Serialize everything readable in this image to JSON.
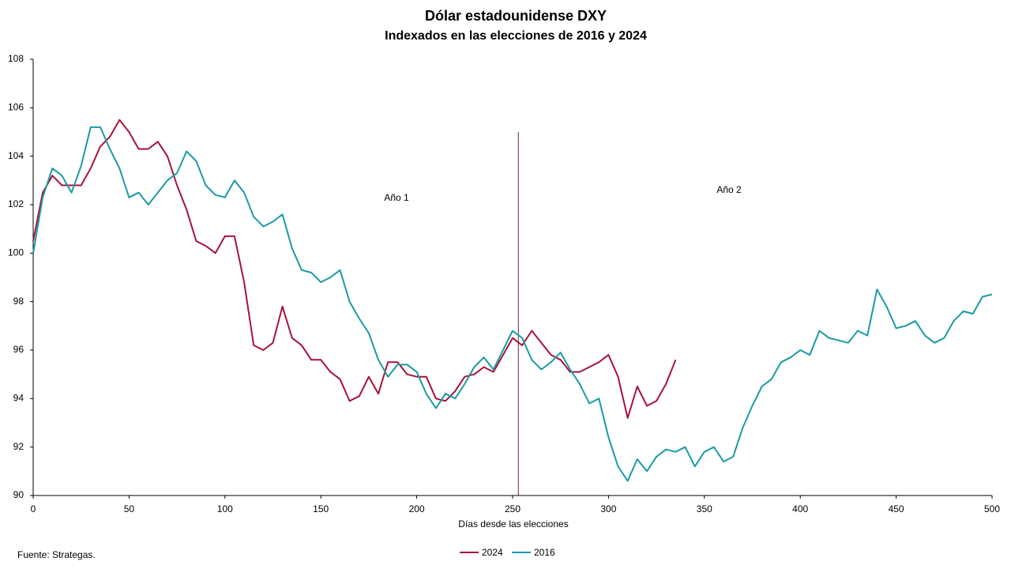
{
  "chart_data": {
    "type": "line",
    "title": "Dólar estadounidense DXY",
    "subtitle": "Indexados en las elecciones de 2016 y 2024",
    "x_label": "Días desde las elecciones",
    "source": "Fuente: Strategas.",
    "annotations": [
      "Año 1",
      "Año 2"
    ],
    "vline": 253,
    "vline_color": "#7a1f3d",
    "x": [
      0,
      5,
      10,
      15,
      20,
      25,
      30,
      35,
      40,
      45,
      50,
      55,
      60,
      65,
      70,
      75,
      80,
      85,
      90,
      95,
      100,
      105,
      110,
      115,
      120,
      125,
      130,
      135,
      140,
      145,
      150,
      155,
      160,
      165,
      170,
      175,
      180,
      185,
      190,
      195,
      200,
      205,
      210,
      215,
      220,
      225,
      230,
      235,
      240,
      245,
      250,
      255,
      260,
      265,
      270,
      275,
      280,
      285,
      290,
      295,
      300,
      305,
      310,
      315,
      320,
      325,
      330,
      335,
      340,
      345,
      350,
      355,
      360,
      365,
      370,
      375,
      380,
      385,
      390,
      395,
      400,
      405,
      410,
      415,
      420,
      425,
      430,
      435,
      440,
      445,
      450,
      455,
      460,
      465,
      470,
      475,
      480,
      485,
      490,
      495,
      500
    ],
    "series": [
      {
        "name": "2024",
        "color": "#a8123a",
        "values": [
          100.5,
          102.5,
          103.2,
          102.8,
          102.8,
          102.8,
          103.5,
          104.4,
          104.8,
          105.5,
          105.0,
          104.3,
          104.3,
          104.6,
          104.0,
          102.8,
          101.8,
          100.5,
          100.3,
          100.0,
          100.7,
          100.7,
          98.8,
          96.2,
          96.0,
          96.3,
          97.8,
          96.5,
          96.2,
          95.6,
          95.6,
          95.1,
          94.8,
          93.9,
          94.1,
          94.9,
          94.2,
          95.5,
          95.5,
          95.0,
          94.9,
          94.9,
          94.0,
          93.9,
          94.3,
          94.9,
          95.0,
          95.3,
          95.1,
          95.8,
          96.5,
          96.2,
          96.8,
          96.3,
          95.8,
          95.6,
          95.1,
          95.1,
          95.3,
          95.5,
          95.8,
          94.9,
          93.2,
          94.5,
          93.7,
          93.9,
          94.6,
          95.6,
          null,
          null,
          null,
          null,
          null,
          null,
          null,
          null,
          null,
          null,
          null,
          null,
          null,
          null,
          null,
          null,
          null,
          null,
          null,
          null,
          null,
          null,
          null,
          null,
          null,
          null,
          null,
          null,
          null,
          null,
          null,
          null,
          null
        ]
      },
      {
        "name": "2016",
        "color": "#1a9ba6",
        "values": [
          100.0,
          102.3,
          103.5,
          103.2,
          102.5,
          103.6,
          105.2,
          105.2,
          104.3,
          103.5,
          102.3,
          102.5,
          102.0,
          102.5,
          103.0,
          103.3,
          104.2,
          103.8,
          102.8,
          102.4,
          102.3,
          103.0,
          102.5,
          101.5,
          101.1,
          101.3,
          101.6,
          100.2,
          99.3,
          99.2,
          98.8,
          99.0,
          99.3,
          98.0,
          97.3,
          96.7,
          95.6,
          94.9,
          95.4,
          95.4,
          95.1,
          94.2,
          93.6,
          94.2,
          94.0,
          94.6,
          95.3,
          95.7,
          95.2,
          96.0,
          96.8,
          96.5,
          95.6,
          95.2,
          95.5,
          95.9,
          95.2,
          94.6,
          93.8,
          94.0,
          92.4,
          91.2,
          90.6,
          91.5,
          91.0,
          91.6,
          91.9,
          91.8,
          92.0,
          91.2,
          91.8,
          92.0,
          91.4,
          91.6,
          92.8,
          93.7,
          94.5,
          94.8,
          95.5,
          95.7,
          96.0,
          95.8,
          96.8,
          96.5,
          96.4,
          96.3,
          96.8,
          96.6,
          98.5,
          97.8,
          96.9,
          97.0,
          97.2,
          96.6,
          96.3,
          96.5,
          97.2,
          97.6,
          97.5,
          98.2,
          98.3
        ]
      }
    ],
    "xlim": [
      0,
      500
    ],
    "xticks": [
      0,
      50,
      100,
      150,
      200,
      250,
      300,
      350,
      400,
      450,
      500
    ],
    "ylim": [
      90,
      108
    ],
    "yticks": [
      90,
      92,
      94,
      96,
      98,
      100,
      102,
      104,
      106,
      108
    ],
    "grid": false,
    "legend": "bottom"
  }
}
